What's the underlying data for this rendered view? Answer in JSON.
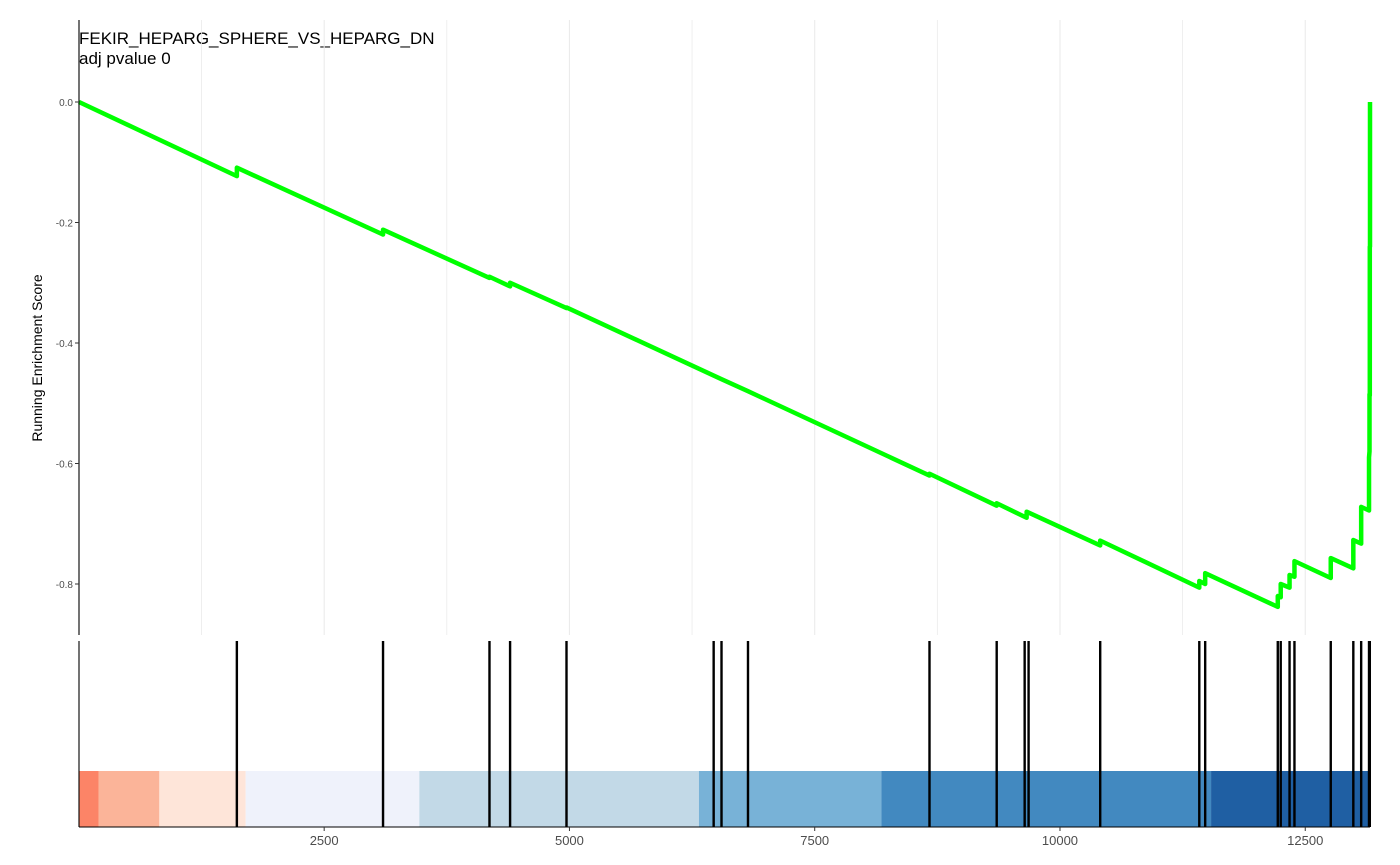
{
  "chart_data": {
    "type": "line",
    "title": "FEKIR_HEPARG_SPHERE_VS_HEPARG_DN",
    "subtitle": "adj pvalue 0",
    "xlabel": "",
    "ylabel": "Running Enrichment Score",
    "xlim": [
      1,
      13160
    ],
    "ylim": [
      -0.875,
      0.02
    ],
    "x_ticks": [
      2500,
      5000,
      7500,
      10000,
      12500
    ],
    "x_tick_labels": [
      "2500",
      "5000",
      "7500",
      "10000",
      "12500"
    ],
    "y_ticks": [
      0.0,
      -0.2,
      -0.4,
      -0.6,
      -0.8
    ],
    "y_tick_labels": [
      "0.0",
      "-0.2",
      "-0.4",
      "-0.6",
      "-0.8"
    ],
    "grid": "vertical",
    "line_color": "#00ff00",
    "series": [
      {
        "values": [
          [
            1,
            0.0
          ],
          [
            1610,
            -0.123
          ],
          [
            1610,
            -0.109
          ],
          [
            3100,
            -0.22
          ],
          [
            3100,
            -0.212
          ],
          [
            4185,
            -0.292
          ],
          [
            4185,
            -0.29
          ],
          [
            4395,
            -0.306
          ],
          [
            4395,
            -0.3
          ],
          [
            4970,
            -0.342
          ],
          [
            4970,
            -0.341
          ],
          [
            6470,
            -0.454
          ],
          [
            6550,
            -0.46
          ],
          [
            6820,
            -0.48
          ],
          [
            8670,
            -0.62
          ],
          [
            8670,
            -0.617
          ],
          [
            9355,
            -0.67
          ],
          [
            9355,
            -0.666
          ],
          [
            9660,
            -0.69
          ],
          [
            9660,
            -0.68
          ],
          [
            10410,
            -0.736
          ],
          [
            10410,
            -0.728
          ],
          [
            11420,
            -0.806
          ],
          [
            11420,
            -0.795
          ],
          [
            11480,
            -0.8
          ],
          [
            11480,
            -0.782
          ],
          [
            12220,
            -0.838
          ],
          [
            12220,
            -0.82
          ],
          [
            12250,
            -0.822
          ],
          [
            12250,
            -0.8
          ],
          [
            12340,
            -0.806
          ],
          [
            12340,
            -0.785
          ],
          [
            12390,
            -0.788
          ],
          [
            12390,
            -0.762
          ],
          [
            12760,
            -0.79
          ],
          [
            12760,
            -0.757
          ],
          [
            12990,
            -0.774
          ],
          [
            12990,
            -0.727
          ],
          [
            13070,
            -0.733
          ],
          [
            13070,
            -0.672
          ],
          [
            13150,
            -0.678
          ],
          [
            13150,
            -0.59
          ],
          [
            13155,
            -0.58
          ],
          [
            13155,
            -0.485
          ],
          [
            13158,
            -0.487
          ],
          [
            13158,
            -0.24
          ],
          [
            13160,
            -0.24
          ],
          [
            13160,
            0.0
          ]
        ]
      }
    ],
    "hits": [
      1610,
      3100,
      4185,
      4395,
      4970,
      6470,
      6550,
      6820,
      8670,
      9355,
      9640,
      9680,
      10410,
      11420,
      11480,
      12220,
      12250,
      12340,
      12390,
      12760,
      12990,
      13070,
      13150,
      13155,
      13158
    ],
    "rank_bands": [
      {
        "from": 1,
        "to": 200,
        "color": "#fc8467"
      },
      {
        "from": 200,
        "to": 820,
        "color": "#fbb499"
      },
      {
        "from": 820,
        "to": 1700,
        "color": "#fee5d9"
      },
      {
        "from": 1700,
        "to": 3470,
        "color": "#eff2fb"
      },
      {
        "from": 3470,
        "to": 6320,
        "color": "#c2d9e7"
      },
      {
        "from": 6320,
        "to": 8180,
        "color": "#78b2d7"
      },
      {
        "from": 8180,
        "to": 11540,
        "color": "#4289c0"
      },
      {
        "from": 11540,
        "to": 13160,
        "color": "#1f5fa3"
      }
    ]
  }
}
